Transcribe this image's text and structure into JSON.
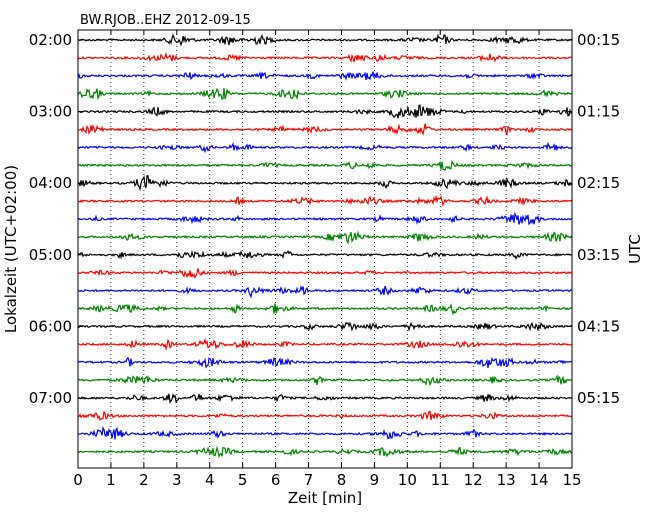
{
  "chart_data": {
    "type": "line",
    "title": "BW.RJOB..EHZ 2012-09-15",
    "xlabel": "Zeit  [min]",
    "ylabel_left": "Lokalzeit (UTC+02:00)",
    "ylabel_right": "UTC",
    "xlim": [
      0,
      15
    ],
    "xticks": [
      "0",
      "1",
      "2",
      "3",
      "4",
      "5",
      "6",
      "7",
      "8",
      "9",
      "10",
      "11",
      "12",
      "13",
      "14",
      "15"
    ],
    "row_minutes": 15,
    "row_count": 24,
    "series_colors": [
      "#000000",
      "#ff0000",
      "#0000ff",
      "#008000"
    ],
    "left_ticks": [
      {
        "row": 0,
        "label": "02:00"
      },
      {
        "row": 4,
        "label": "03:00"
      },
      {
        "row": 8,
        "label": "04:00"
      },
      {
        "row": 12,
        "label": "05:00"
      },
      {
        "row": 16,
        "label": "06:00"
      },
      {
        "row": 20,
        "label": "07:00"
      }
    ],
    "right_ticks": [
      {
        "row": 0,
        "label": "00:15"
      },
      {
        "row": 4,
        "label": "01:15"
      },
      {
        "row": 8,
        "label": "02:15"
      },
      {
        "row": 12,
        "label": "03:15"
      },
      {
        "row": 16,
        "label": "04:15"
      },
      {
        "row": 20,
        "label": "05:15"
      }
    ],
    "grid": "vertical dotted at each minute"
  }
}
